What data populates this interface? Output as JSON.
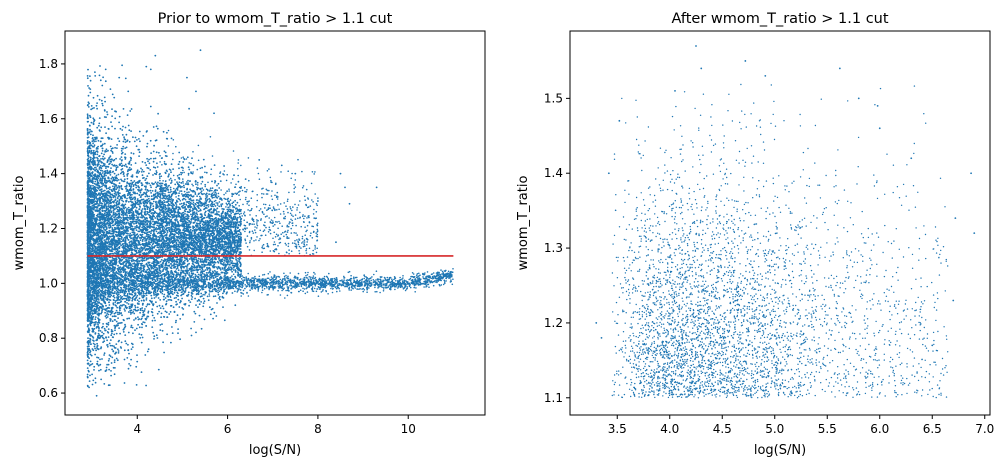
{
  "chart_data": [
    {
      "type": "scatter",
      "title": "Prior to wmom_T_ratio > 1.1 cut",
      "xlabel": "log(S/N)",
      "ylabel": "wmom_T_ratio",
      "xlim": [
        2.4,
        11.7
      ],
      "ylim": [
        0.52,
        1.92
      ],
      "xticks": [
        "4",
        "6",
        "8",
        "10"
      ],
      "yticks": [
        "0.6",
        "0.8",
        "1.0",
        "1.2",
        "1.4",
        "1.6",
        "1.8"
      ],
      "marker_color": "#1f77b4",
      "grid": false,
      "series": [
        {
          "points": [
            [
              3.1,
              0.59
            ],
            [
              3.2,
              0.65
            ],
            [
              3.5,
              0.72
            ],
            [
              3.3,
              0.68
            ],
            [
              4.3,
              1.78
            ],
            [
              4.4,
              1.83
            ],
            [
              5.4,
              1.85
            ],
            [
              5.1,
              1.75
            ],
            [
              5.3,
              1.7
            ],
            [
              6.4,
              1.38
            ],
            [
              6.7,
              1.45
            ],
            [
              7.2,
              1.43
            ],
            [
              7.5,
              1.4
            ],
            [
              8.5,
              1.4
            ],
            [
              8.6,
              1.35
            ],
            [
              8.7,
              1.29
            ],
            [
              9.3,
              1.35
            ],
            [
              8.0,
              1.3
            ],
            [
              8.4,
              1.15
            ],
            [
              6.9,
              1.27
            ],
            [
              7.8,
              1.24
            ],
            [
              4.2,
              1.79
            ],
            [
              5.7,
              1.62
            ],
            [
              3.8,
              1.7
            ],
            [
              3.6,
              1.75
            ]
          ]
        }
      ],
      "hlines": [
        {
          "y": 1.1,
          "xmin": 2.9,
          "xmax": 11.0,
          "color": "#d62728"
        }
      ]
    },
    {
      "type": "scatter",
      "title": "After wmom_T_ratio > 1.1 cut",
      "xlabel": "log(S/N)",
      "ylabel": "wmom_T_ratio",
      "xlim": [
        3.05,
        7.05
      ],
      "ylim": [
        1.077,
        1.59
      ],
      "xticks": [
        "3.5",
        "4.0",
        "4.5",
        "5.0",
        "5.5",
        "6.0",
        "6.5",
        "7.0"
      ],
      "yticks": [
        "1.1",
        "1.2",
        "1.3",
        "1.4",
        "1.5"
      ],
      "marker_color": "#1f77b4",
      "grid": false,
      "series": [
        {
          "points": [
            [
              4.25,
              1.57
            ],
            [
              4.72,
              1.55
            ],
            [
              4.3,
              1.54
            ],
            [
              5.62,
              1.54
            ],
            [
              4.91,
              1.53
            ],
            [
              5.98,
              1.49
            ],
            [
              6.87,
              1.4
            ],
            [
              6.9,
              1.32
            ],
            [
              6.72,
              1.34
            ],
            [
              3.3,
              1.2
            ],
            [
              3.35,
              1.18
            ],
            [
              3.42,
              1.4
            ],
            [
              6.3,
              1.42
            ],
            [
              6.7,
              1.23
            ],
            [
              6.5,
              1.17
            ],
            [
              6.0,
              1.46
            ],
            [
              5.8,
              1.5
            ],
            [
              3.52,
              1.47
            ],
            [
              4.05,
              1.51
            ]
          ]
        }
      ]
    }
  ]
}
